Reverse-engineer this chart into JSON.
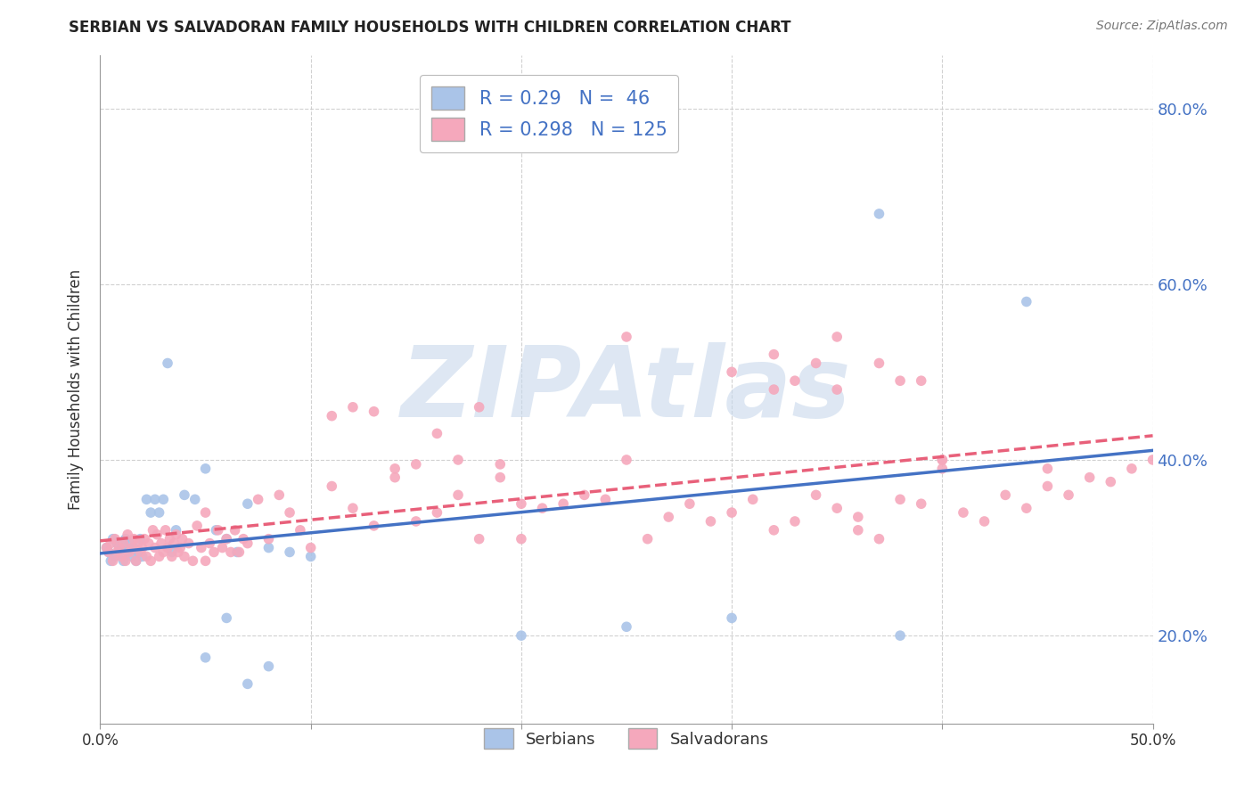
{
  "title": "SERBIAN VS SALVADORAN FAMILY HOUSEHOLDS WITH CHILDREN CORRELATION CHART",
  "source_text": "Source: ZipAtlas.com",
  "ylabel": "Family Households with Children",
  "xlim": [
    0.0,
    0.5
  ],
  "ylim": [
    0.1,
    0.86
  ],
  "xtick_vals": [
    0.0,
    0.1,
    0.2,
    0.3,
    0.4,
    0.5
  ],
  "xtick_labels": [
    "0.0%",
    "",
    "",
    "",
    "",
    "50.0%"
  ],
  "ytick_vals": [
    0.2,
    0.4,
    0.6,
    0.8
  ],
  "ytick_labels": [
    "20.0%",
    "40.0%",
    "60.0%",
    "80.0%"
  ],
  "serbian_color": "#aac4e8",
  "salvadoran_color": "#f5a8bc",
  "serbian_line_color": "#4472c4",
  "salvadoran_line_color": "#e8607a",
  "serbian_R": 0.29,
  "serbian_N": 46,
  "salvadoran_R": 0.298,
  "salvadoran_N": 125,
  "background_color": "#ffffff",
  "grid_color": "#cccccc",
  "watermark": "ZIPAtlas",
  "watermark_color": "#c8d8ec",
  "legend_label_serbian": "Serbians",
  "legend_label_salvadoran": "Salvadorans",
  "serbian_x": [
    0.003,
    0.004,
    0.005,
    0.006,
    0.007,
    0.008,
    0.009,
    0.01,
    0.011,
    0.012,
    0.013,
    0.014,
    0.015,
    0.016,
    0.017,
    0.018,
    0.019,
    0.02,
    0.022,
    0.024,
    0.026,
    0.028,
    0.03,
    0.032,
    0.034,
    0.036,
    0.04,
    0.045,
    0.05,
    0.055,
    0.06,
    0.065,
    0.07,
    0.08,
    0.09,
    0.1,
    0.05,
    0.06,
    0.07,
    0.08,
    0.2,
    0.25,
    0.3,
    0.38,
    0.44,
    0.37
  ],
  "serbian_y": [
    0.3,
    0.295,
    0.285,
    0.31,
    0.29,
    0.305,
    0.295,
    0.3,
    0.285,
    0.31,
    0.295,
    0.305,
    0.29,
    0.3,
    0.285,
    0.295,
    0.31,
    0.29,
    0.355,
    0.34,
    0.355,
    0.34,
    0.355,
    0.51,
    0.295,
    0.32,
    0.36,
    0.355,
    0.39,
    0.32,
    0.31,
    0.295,
    0.35,
    0.3,
    0.295,
    0.29,
    0.175,
    0.22,
    0.145,
    0.165,
    0.2,
    0.21,
    0.22,
    0.2,
    0.58,
    0.68
  ],
  "salvadoran_x": [
    0.003,
    0.004,
    0.005,
    0.006,
    0.007,
    0.008,
    0.009,
    0.01,
    0.011,
    0.012,
    0.013,
    0.014,
    0.015,
    0.016,
    0.017,
    0.018,
    0.019,
    0.02,
    0.021,
    0.022,
    0.023,
    0.024,
    0.025,
    0.026,
    0.027,
    0.028,
    0.029,
    0.03,
    0.031,
    0.032,
    0.033,
    0.034,
    0.035,
    0.036,
    0.037,
    0.038,
    0.039,
    0.04,
    0.042,
    0.044,
    0.046,
    0.048,
    0.05,
    0.052,
    0.054,
    0.056,
    0.058,
    0.06,
    0.062,
    0.064,
    0.066,
    0.068,
    0.07,
    0.075,
    0.08,
    0.085,
    0.09,
    0.095,
    0.1,
    0.11,
    0.12,
    0.13,
    0.14,
    0.15,
    0.16,
    0.17,
    0.18,
    0.19,
    0.2,
    0.21,
    0.22,
    0.23,
    0.24,
    0.25,
    0.26,
    0.27,
    0.28,
    0.29,
    0.3,
    0.31,
    0.32,
    0.33,
    0.34,
    0.35,
    0.36,
    0.37,
    0.38,
    0.39,
    0.4,
    0.41,
    0.42,
    0.43,
    0.44,
    0.45,
    0.46,
    0.47,
    0.48,
    0.49,
    0.5,
    0.32,
    0.11,
    0.12,
    0.13,
    0.14,
    0.15,
    0.16,
    0.17,
    0.18,
    0.19,
    0.2,
    0.25,
    0.3,
    0.35,
    0.4,
    0.45,
    0.32,
    0.33,
    0.34,
    0.35,
    0.36,
    0.37,
    0.38,
    0.39,
    0.4,
    0.05
  ],
  "salvadoran_y": [
    0.3,
    0.295,
    0.305,
    0.285,
    0.31,
    0.295,
    0.3,
    0.29,
    0.305,
    0.285,
    0.315,
    0.295,
    0.3,
    0.31,
    0.285,
    0.305,
    0.295,
    0.3,
    0.31,
    0.29,
    0.305,
    0.285,
    0.32,
    0.3,
    0.315,
    0.29,
    0.305,
    0.295,
    0.32,
    0.3,
    0.31,
    0.29,
    0.305,
    0.315,
    0.295,
    0.3,
    0.31,
    0.29,
    0.305,
    0.285,
    0.325,
    0.3,
    0.34,
    0.305,
    0.295,
    0.32,
    0.3,
    0.31,
    0.295,
    0.32,
    0.295,
    0.31,
    0.305,
    0.355,
    0.31,
    0.36,
    0.34,
    0.32,
    0.3,
    0.37,
    0.345,
    0.325,
    0.38,
    0.33,
    0.34,
    0.36,
    0.31,
    0.38,
    0.31,
    0.345,
    0.35,
    0.36,
    0.355,
    0.4,
    0.31,
    0.335,
    0.35,
    0.33,
    0.34,
    0.355,
    0.32,
    0.33,
    0.36,
    0.345,
    0.335,
    0.31,
    0.355,
    0.35,
    0.39,
    0.34,
    0.33,
    0.36,
    0.345,
    0.37,
    0.36,
    0.38,
    0.375,
    0.39,
    0.4,
    0.48,
    0.45,
    0.46,
    0.455,
    0.39,
    0.395,
    0.43,
    0.4,
    0.46,
    0.395,
    0.35,
    0.54,
    0.5,
    0.54,
    0.4,
    0.39,
    0.52,
    0.49,
    0.51,
    0.48,
    0.32,
    0.51,
    0.49,
    0.49,
    0.4,
    0.285
  ]
}
